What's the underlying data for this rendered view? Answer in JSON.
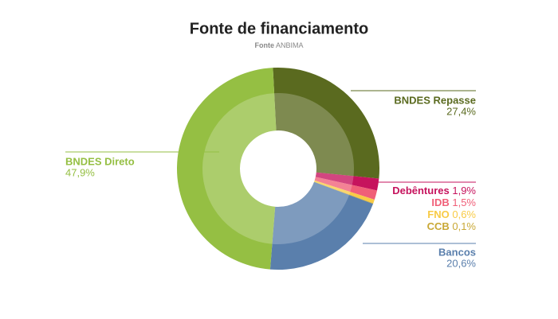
{
  "chart_data": {
    "type": "pie",
    "donut": true,
    "title": "Fonte de financiamento",
    "source_label": "Fonte",
    "source": "ANBIMA",
    "categories": [
      "BNDES Repasse",
      "Debêntures",
      "IDB",
      "FNO",
      "CCB",
      "Bancos",
      "BNDES Direto"
    ],
    "values": [
      27.4,
      1.9,
      1.5,
      0.6,
      0.1,
      20.6,
      47.9
    ],
    "value_labels": [
      "27,4%",
      "1,9%",
      "1,5%",
      "0,6%",
      "0,1%",
      "20,6%",
      "47,9%"
    ],
    "colors": [
      "#5a6a1f",
      "#c6135d",
      "#f05f78",
      "#f8cb46",
      "#c9a835",
      "#5a7fac",
      "#95bf43"
    ]
  }
}
